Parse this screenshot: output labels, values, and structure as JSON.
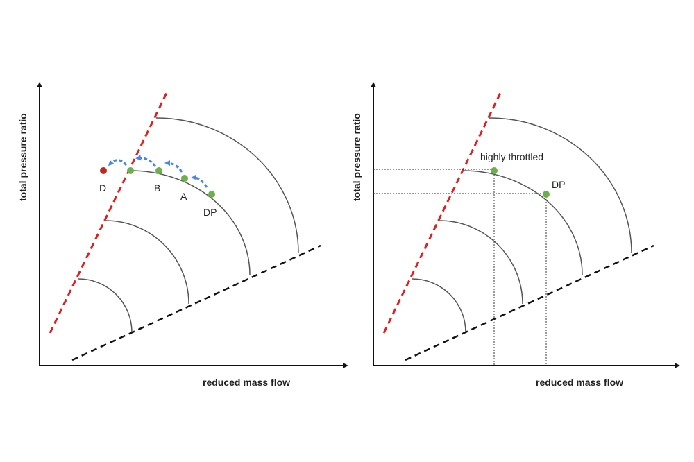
{
  "left_panel": {
    "y_axis_label": "total pressure ratio",
    "x_axis_label": "reduced mass flow",
    "points": {
      "d": "D",
      "b": "B",
      "a": "A",
      "dp": "DP"
    }
  },
  "right_panel": {
    "y_axis_label": "total pressure ratio",
    "x_axis_label": "reduced mass flow",
    "points": {
      "highly_throttled": "highly throttled",
      "dp": "DP"
    }
  },
  "colors": {
    "surge_line": "#e02020",
    "choke_line": "#111111",
    "speed_line": "#555555",
    "operating_point": "#6ab04c",
    "stall_point": "#c0281c",
    "arrow": "#4a86e8"
  }
}
